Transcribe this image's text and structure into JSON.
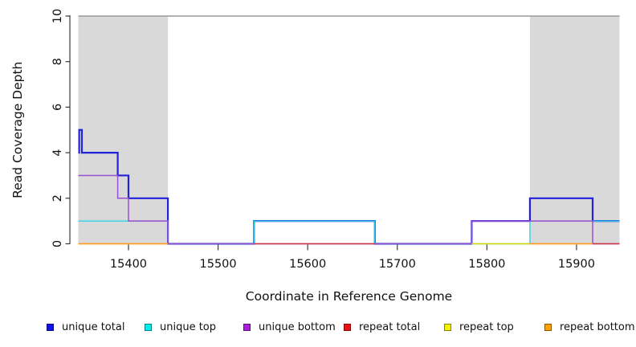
{
  "chart_data": {
    "type": "line",
    "subtype": "step-coverage",
    "title": "",
    "xlabel": "Coordinate in Reference Genome",
    "ylabel": "Read Coverage Depth",
    "xlim": [
      15344,
      15948
    ],
    "ylim": [
      0,
      10
    ],
    "x_ticks": [
      15400,
      15500,
      15600,
      15700,
      15800,
      15900
    ],
    "y_ticks": [
      0,
      2,
      4,
      6,
      8,
      10
    ],
    "grid": "off",
    "shade_color": "#d9d9d9",
    "shaded_regions": [
      {
        "x1": 15344,
        "x2": 15444
      },
      {
        "x1": 15848,
        "x2": 15948
      }
    ],
    "depth_cap_line": {
      "value": 10,
      "color": "#999999"
    },
    "series": [
      {
        "name": "unique total",
        "color": "#2222dd",
        "width": 2.2,
        "segments": [
          [
            15344,
            15345,
            4
          ],
          [
            15345,
            15348,
            5
          ],
          [
            15348,
            15388,
            4
          ],
          [
            15388,
            15400,
            3
          ],
          [
            15400,
            15444,
            2
          ],
          [
            15444,
            15540,
            0
          ],
          [
            15540,
            15675,
            1
          ],
          [
            15675,
            15783,
            0
          ],
          [
            15783,
            15848,
            1
          ],
          [
            15848,
            15918,
            2
          ],
          [
            15918,
            15948,
            1
          ]
        ]
      },
      {
        "name": "unique top",
        "color": "#2ed3e8",
        "width": 1.4,
        "segments": [
          [
            15344,
            15444,
            1
          ],
          [
            15444,
            15540,
            0
          ],
          [
            15540,
            15675,
            1
          ],
          [
            15675,
            15848,
            0
          ],
          [
            15848,
            15948,
            1
          ]
        ]
      },
      {
        "name": "unique bottom",
        "color": "#9a4fd2",
        "width": 1.5,
        "segments": [
          [
            15344,
            15388,
            3
          ],
          [
            15388,
            15400,
            2
          ],
          [
            15400,
            15444,
            1
          ],
          [
            15444,
            15783,
            0
          ],
          [
            15783,
            15918,
            1
          ],
          [
            15918,
            15948,
            0
          ]
        ]
      },
      {
        "name": "repeat total",
        "color": "#cf3640",
        "width": 1.4,
        "segments": [
          [
            15540,
            15675,
            0
          ],
          [
            15918,
            15948,
            0
          ]
        ]
      },
      {
        "name": "repeat top",
        "color": "#d8d800",
        "width": 1.4,
        "segments": [
          [
            15783,
            15848,
            0
          ]
        ]
      },
      {
        "name": "repeat bottom",
        "color": "#ff9d1e",
        "width": 1.8,
        "segments": [
          [
            15344,
            15444,
            0
          ],
          [
            15848,
            15918,
            0
          ]
        ]
      }
    ]
  },
  "legend": {
    "items": [
      {
        "label": "unique total",
        "color": "#1111ee"
      },
      {
        "label": "unique top",
        "color": "#00eeee"
      },
      {
        "label": "unique bottom",
        "color": "#a81fd8"
      },
      {
        "label": "repeat total",
        "color": "#ee1111"
      },
      {
        "label": "repeat top",
        "color": "#f2f200"
      },
      {
        "label": "repeat bottom",
        "color": "#ffa200"
      }
    ]
  }
}
